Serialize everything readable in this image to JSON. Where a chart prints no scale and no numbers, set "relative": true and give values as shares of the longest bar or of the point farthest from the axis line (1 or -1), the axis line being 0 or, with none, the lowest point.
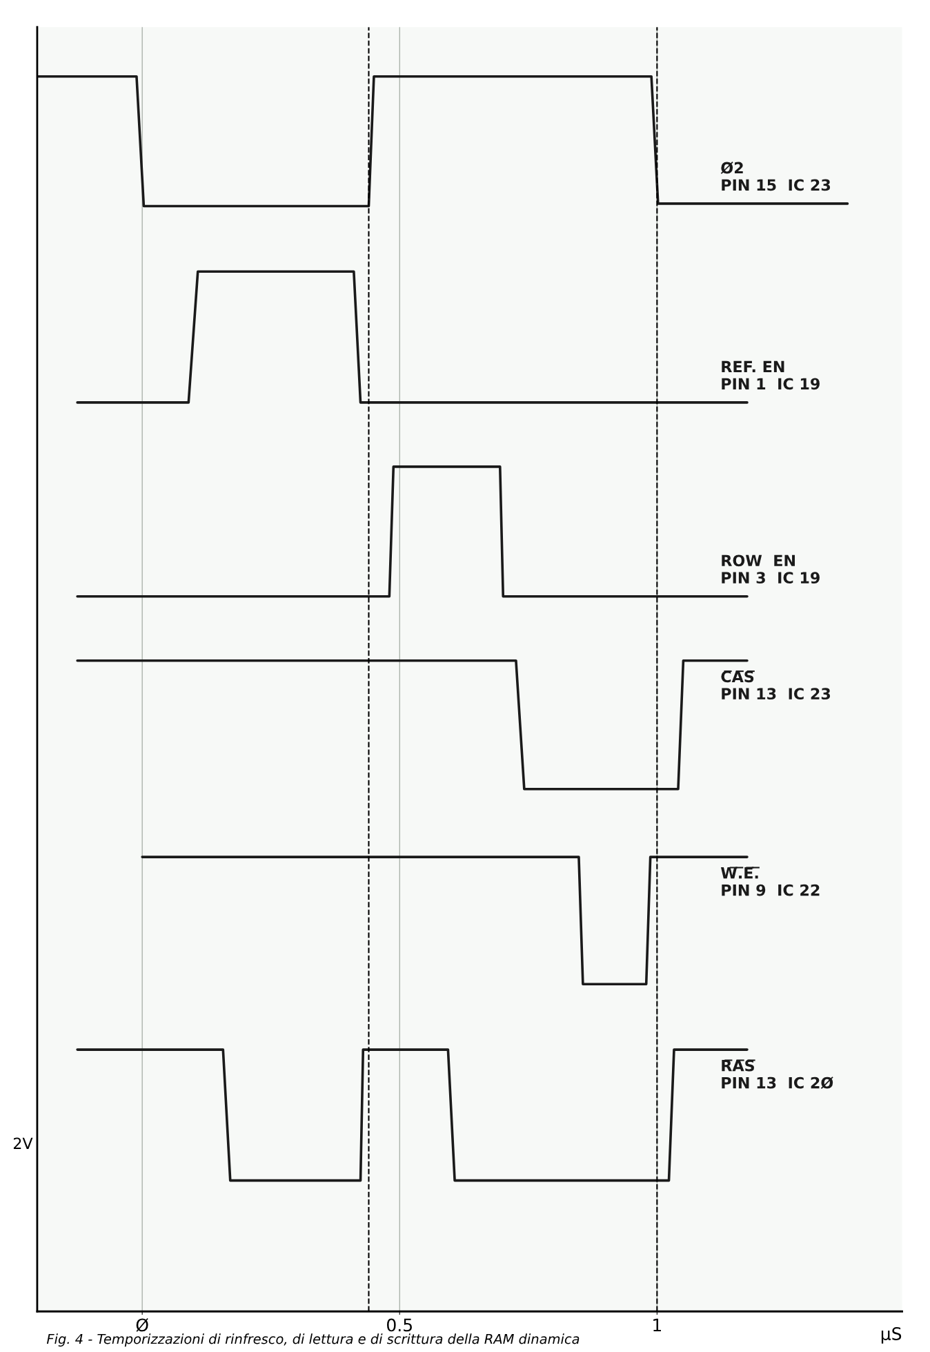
{
  "chart_data": {
    "type": "line",
    "relative": true,
    "xlabel": "µS",
    "xlim": [
      -0.204,
      1.476
    ],
    "xticks": [
      {
        "value": 0,
        "label": "Ø"
      },
      0.5,
      1
    ],
    "grid": true,
    "legend": false,
    "marker": "none",
    "line_style": "solid",
    "ref_lines": [
      {
        "axis": "x",
        "value": 0.44,
        "line_style": "dashed",
        "color": "#000000"
      },
      {
        "axis": "x",
        "value": 1.0,
        "line_style": "dashed",
        "color": "#000000"
      }
    ],
    "annotations": [
      "2V",
      "Fig. 4 - Temporizzazioni di rinfresco, di lettura e di scrittura della RAM dinamica"
    ],
    "series": [
      {
        "name": "Ø2\nPIN 15  IC 23",
        "color": "#1a1a1a",
        "x": [
          -0.204,
          -0.011,
          0.003,
          0.44,
          0.45,
          0.989,
          1.002,
          1.37
        ],
        "values": [
          1.0,
          1.0,
          0.895,
          0.895,
          1.0,
          1.0,
          0.897,
          0.897
        ]
      },
      {
        "name": "REF. EN\nPIN 1  IC 19",
        "color": "#1a1a1a",
        "x": [
          -0.126,
          0.09,
          0.108,
          0.411,
          0.424,
          1.175
        ],
        "values": [
          0.736,
          0.736,
          0.842,
          0.842,
          0.736,
          0.736
        ]
      },
      {
        "name": "ROW  EN\nPIN 3  IC 19",
        "color": "#1a1a1a",
        "x": [
          -0.126,
          0.48,
          0.488,
          0.695,
          0.701,
          1.175
        ],
        "values": [
          0.579,
          0.579,
          0.684,
          0.684,
          0.579,
          0.579
        ]
      },
      {
        "name": "C̅A̅S̅\nPIN 13  IC 23",
        "color": "#1a1a1a",
        "x": [
          -0.126,
          0.726,
          0.742,
          1.041,
          1.051,
          1.175
        ],
        "values": [
          0.527,
          0.527,
          0.423,
          0.423,
          0.527,
          0.527
        ]
      },
      {
        "name": "W̅.̅E̅.̅\nPIN 9  IC 22",
        "color": "#1a1a1a",
        "x": [
          0.0,
          0.848,
          0.856,
          0.979,
          0.987,
          1.175
        ],
        "values": [
          0.368,
          0.368,
          0.265,
          0.265,
          0.368,
          0.368
        ]
      },
      {
        "name": "R̅A̅S̅\nPIN 13  IC 2Ø",
        "color": "#1a1a1a",
        "x": [
          -0.126,
          0.157,
          0.171,
          0.424,
          0.429,
          0.594,
          0.607,
          1.023,
          1.033,
          1.175
        ],
        "values": [
          0.212,
          0.212,
          0.106,
          0.106,
          0.212,
          0.212,
          0.106,
          0.106,
          0.212,
          0.212
        ]
      }
    ]
  }
}
